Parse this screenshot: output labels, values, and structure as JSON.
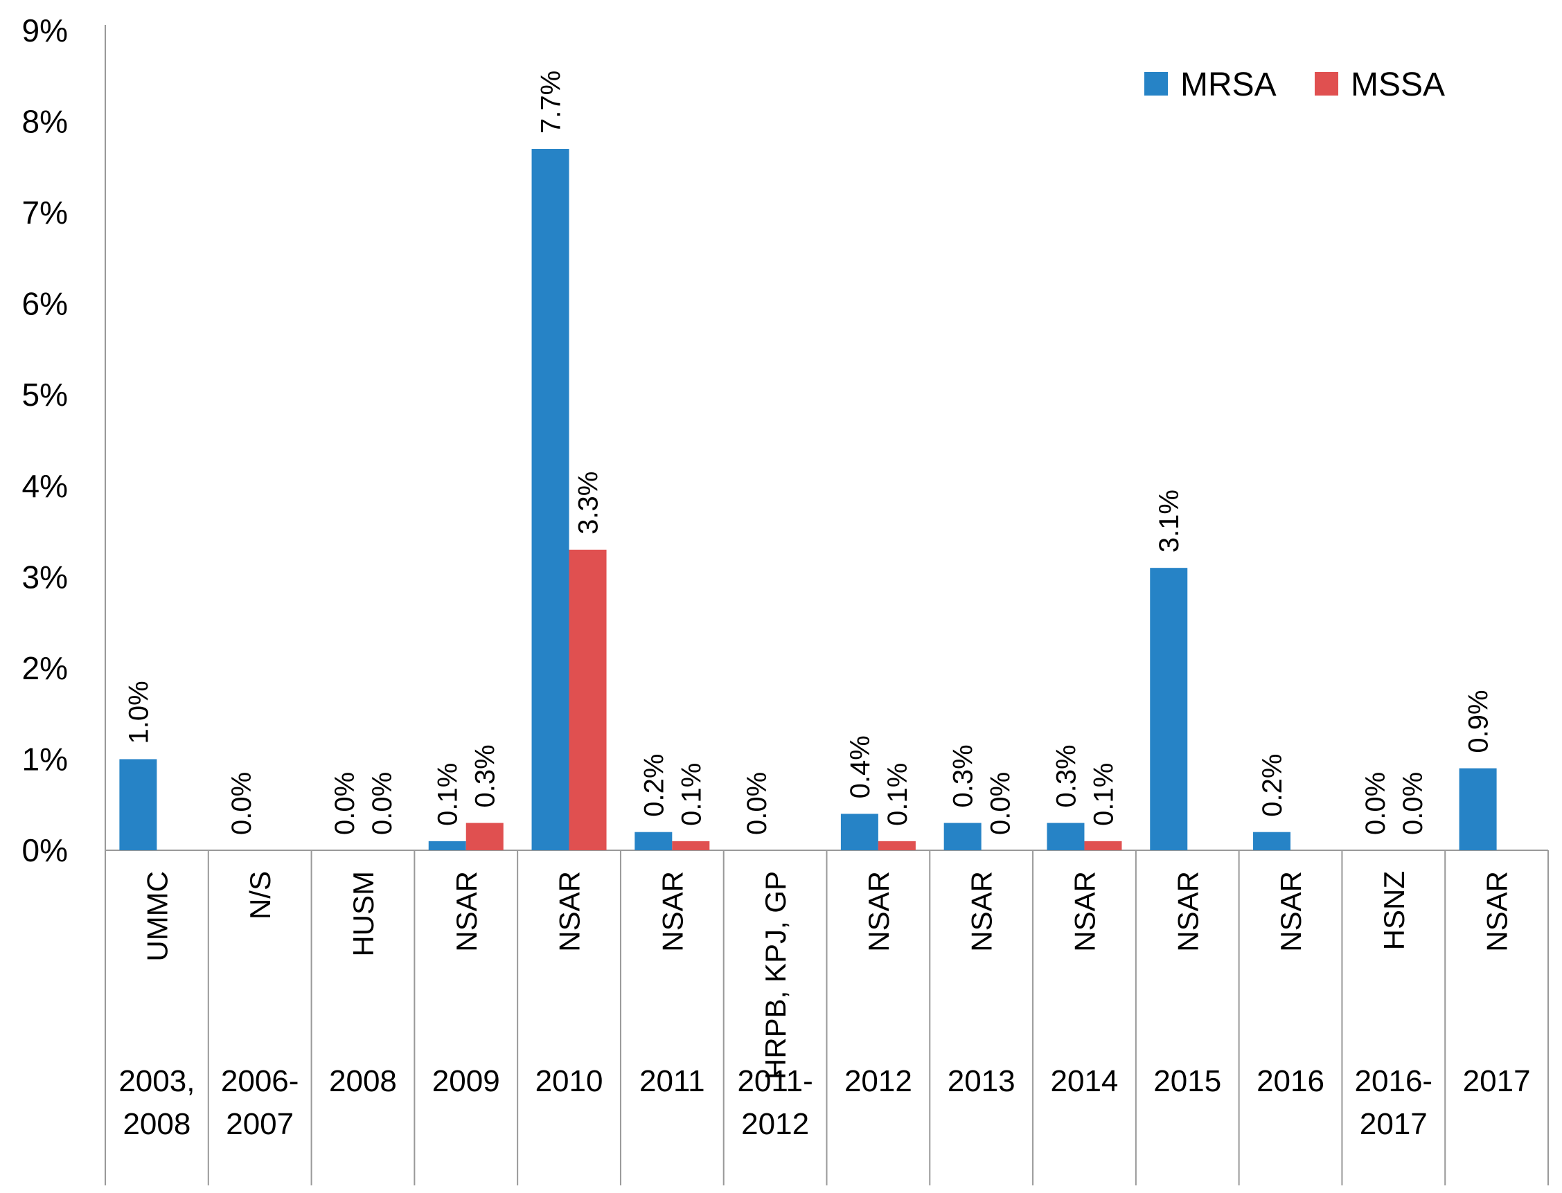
{
  "chart_data": {
    "type": "bar",
    "title": "",
    "xlabel": "",
    "ylabel": "",
    "ylim": [
      0,
      9
    ],
    "y_ticks": [
      "0%",
      "1%",
      "2%",
      "3%",
      "4%",
      "5%",
      "6%",
      "7%",
      "8%",
      "9%"
    ],
    "legend_position": "top-right",
    "colors": {
      "MRSA": "#2683C6",
      "MSSA": "#E05050"
    },
    "categories": [
      {
        "site": "UMMC",
        "year": [
          "2003,",
          "2008"
        ]
      },
      {
        "site": "N/S",
        "year": [
          "2006-",
          "2007"
        ]
      },
      {
        "site": "HUSM",
        "year": [
          "2008"
        ]
      },
      {
        "site": "NSAR",
        "year": [
          "2009"
        ]
      },
      {
        "site": "NSAR",
        "year": [
          "2010"
        ]
      },
      {
        "site": "NSAR",
        "year": [
          "2011"
        ]
      },
      {
        "site": "HRPB, KPJ, GP",
        "year": [
          "2011-",
          "2012"
        ]
      },
      {
        "site": "NSAR",
        "year": [
          "2012"
        ]
      },
      {
        "site": "NSAR",
        "year": [
          "2013"
        ]
      },
      {
        "site": "NSAR",
        "year": [
          "2014"
        ]
      },
      {
        "site": "NSAR",
        "year": [
          "2015"
        ]
      },
      {
        "site": "NSAR",
        "year": [
          "2016"
        ]
      },
      {
        "site": "HSNZ",
        "year": [
          "2016-",
          "2017"
        ]
      },
      {
        "site": "NSAR",
        "year": [
          "2017"
        ]
      }
    ],
    "series": [
      {
        "name": "MRSA",
        "values": [
          1.0,
          0.0,
          0.0,
          0.1,
          7.7,
          0.2,
          0.0,
          0.4,
          0.3,
          0.3,
          3.1,
          0.2,
          0.0,
          0.9
        ],
        "labels": [
          "1.0%",
          "0.0%",
          "0.0%",
          "0.1%",
          "7.7%",
          "0.2%",
          "0.0%",
          "0.4%",
          "0.3%",
          "0.3%",
          "3.1%",
          "0.2%",
          "0.0%",
          "0.9%"
        ]
      },
      {
        "name": "MSSA",
        "values": [
          null,
          null,
          0.0,
          0.3,
          3.3,
          0.1,
          null,
          0.1,
          0.0,
          0.1,
          null,
          null,
          0.0,
          null
        ],
        "labels": [
          null,
          null,
          "0.0%",
          "0.3%",
          "3.3%",
          "0.1%",
          null,
          "0.1%",
          "0.0%",
          "0.1%",
          null,
          null,
          "0.0%",
          null
        ]
      }
    ]
  }
}
